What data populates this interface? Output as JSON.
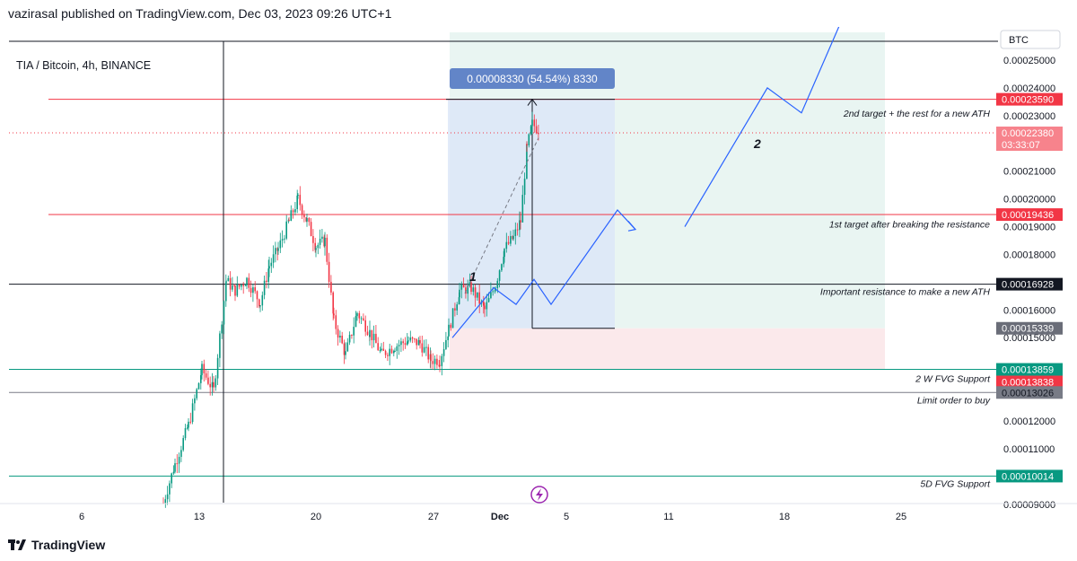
{
  "header": {
    "published": "vazirasal published on TradingView.com, Dec 03, 2023 09:26 UTC+1"
  },
  "symbol": {
    "legend": "TIA / Bitcoin, 4h, BINANCE"
  },
  "currency": "BTC",
  "colors": {
    "red_line": "#f23645",
    "green_line": "#089981",
    "gray_line": "#787b86",
    "projection": "#2962ff",
    "measure_box": "#dbe6f7",
    "long_green_zone": "#e9f5f2",
    "long_red_zone": "#fbe9eb",
    "candle_up": "#089981",
    "candle_down": "#f23645"
  },
  "price_axis": {
    "ticks": [
      "0.00025000",
      "0.00024000",
      "0.00023000",
      "0.00021000",
      "0.00020000",
      "0.00019000",
      "0.00018000",
      "0.00016000",
      "0.00015000",
      "0.00012000",
      "0.00011000",
      "0.00009000"
    ]
  },
  "time_axis": {
    "ticks": [
      "6",
      "13",
      "20",
      "27",
      "Dec",
      "5",
      "11",
      "18",
      "25"
    ]
  },
  "price_badges": [
    {
      "value": "0.00023590",
      "color": "#f23645",
      "text_color": "#ffffff"
    },
    {
      "value": "0.00022380",
      "sub": "03:33:07",
      "color": "#f7838c",
      "text_color": "#ffffff"
    },
    {
      "value": "0.00019436",
      "color": "#f23645",
      "text_color": "#ffffff"
    },
    {
      "value": "0.00016928",
      "color": "#131722",
      "text_color": "#ffffff"
    },
    {
      "value": "0.00015339",
      "color": "#6a6d78",
      "text_color": "#ffffff"
    },
    {
      "value": "0.00013859",
      "color": "#089981",
      "text_color": "#ffffff"
    },
    {
      "value": "0.00013838",
      "color": "#f23645",
      "text_color": "#ffffff"
    },
    {
      "value": "0.00013026",
      "color": "#787b86",
      "text_color": "#131722"
    },
    {
      "value": "0.00010014",
      "color": "#089981",
      "text_color": "#ffffff"
    }
  ],
  "annotations": [
    "2nd target + the rest for a new ATH",
    "1st target after breaking the resistance",
    "Important resistance to make a new ATH",
    "2 W FVG Support",
    "Limit order to buy",
    "5D FVG Support"
  ],
  "measure_label": "0.00008330 (54.54%) 8330",
  "wave_labels": [
    "1",
    "2"
  ],
  "footer": {
    "brand": "TradingView"
  }
}
